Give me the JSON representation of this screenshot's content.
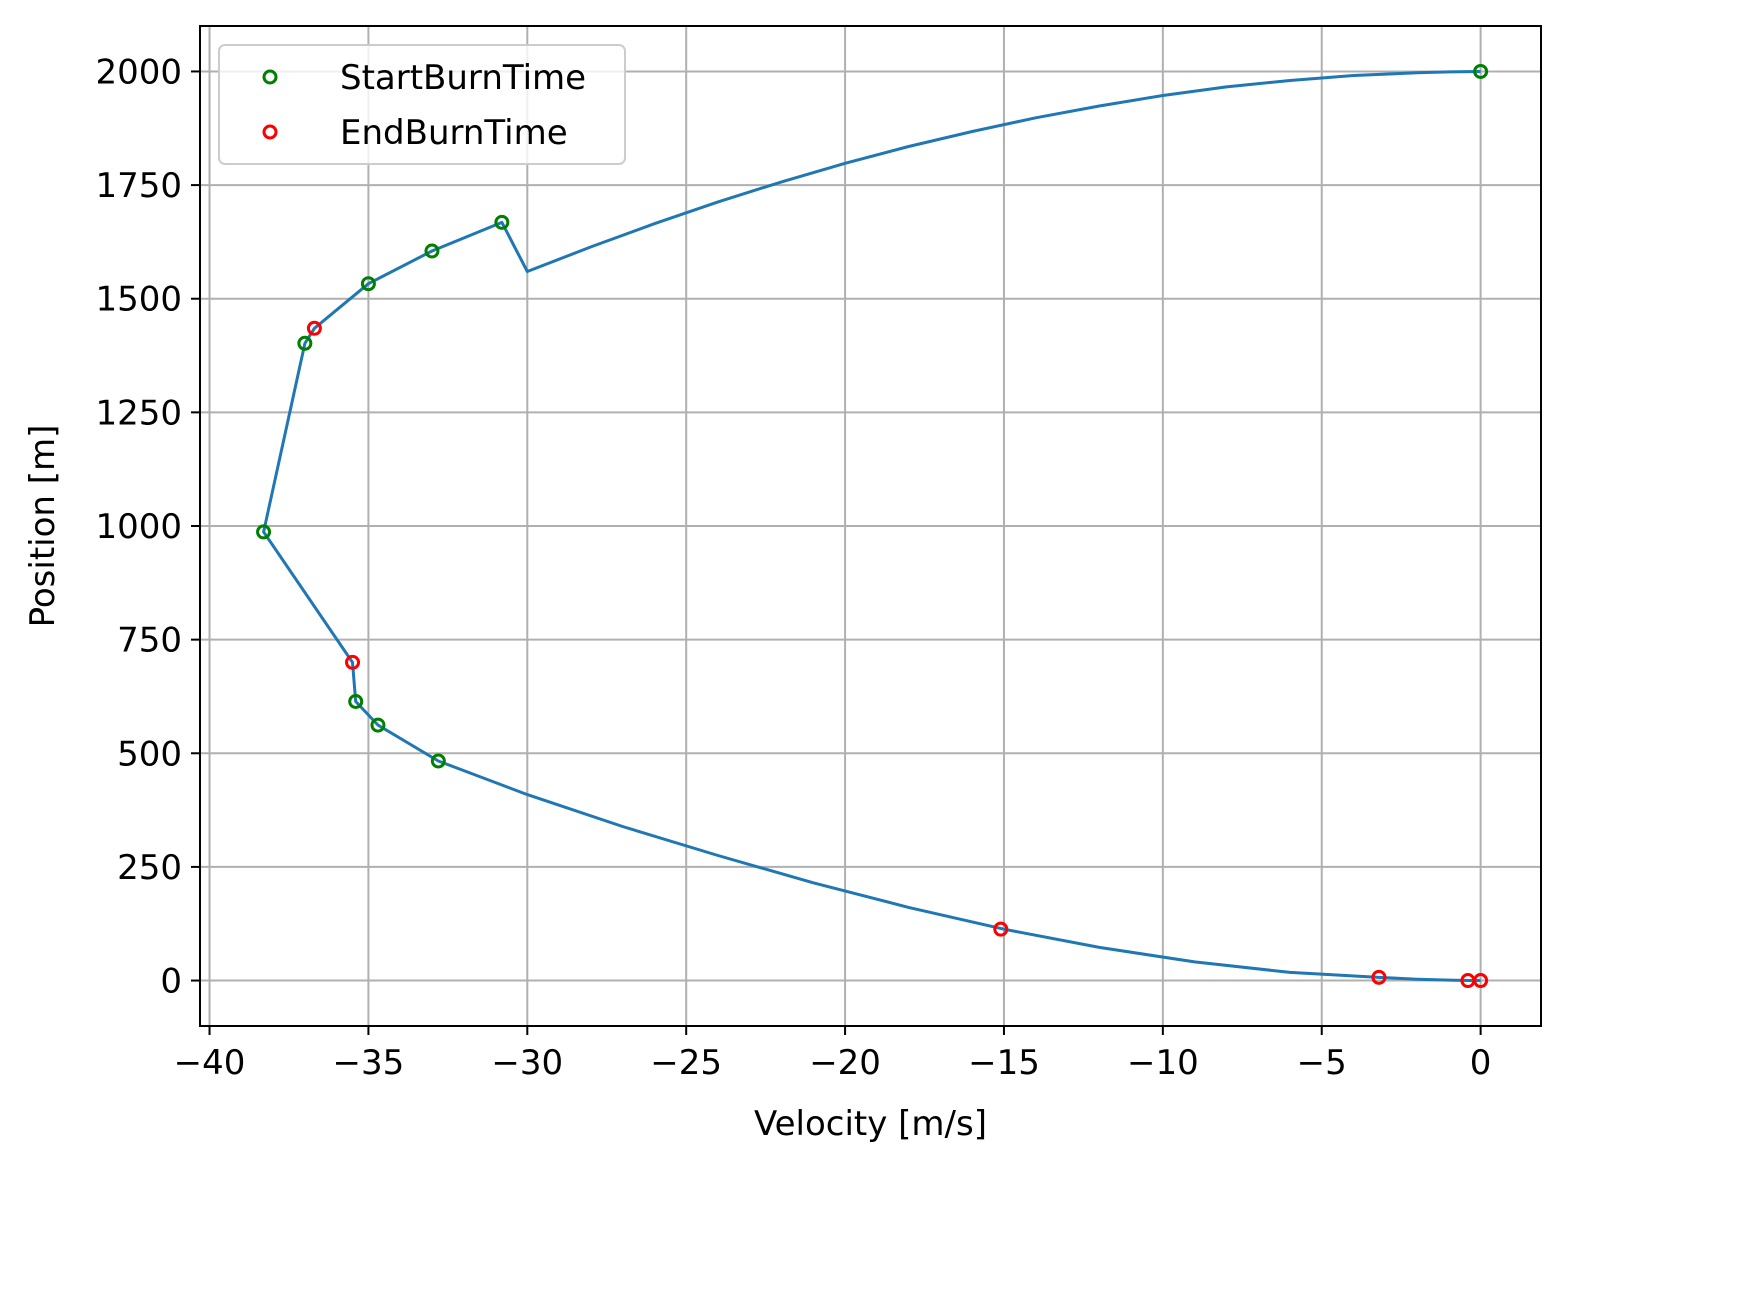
{
  "chart_data": {
    "type": "scatter",
    "title": "",
    "xlabel": "Velocity [m/s]",
    "ylabel": "Position [m]",
    "xlim": [
      -40.3,
      1.9
    ],
    "ylim": [
      -100,
      2100
    ],
    "xticks": [
      -40,
      -35,
      -30,
      -25,
      -20,
      -15,
      -10,
      -5,
      0
    ],
    "xtick_labels": [
      "−40",
      "−35",
      "−30",
      "−25",
      "−20",
      "−15",
      "−10",
      "−5",
      "0"
    ],
    "yticks": [
      0,
      250,
      500,
      750,
      1000,
      1250,
      1500,
      1750,
      2000
    ],
    "ytick_labels": [
      "0",
      "250",
      "500",
      "750",
      "1000",
      "1250",
      "1500",
      "1750",
      "2000"
    ],
    "grid": true,
    "legend_position": "top-left",
    "trajectory": {
      "color": "#1f77b4",
      "points": [
        [
          0.0,
          2000
        ],
        [
          -1.0,
          1999
        ],
        [
          -2.0,
          1997
        ],
        [
          -4.0,
          1991
        ],
        [
          -6.0,
          1980
        ],
        [
          -8.0,
          1966
        ],
        [
          -10.0,
          1947
        ],
        [
          -12.0,
          1924
        ],
        [
          -14.0,
          1898
        ],
        [
          -16.0,
          1868
        ],
        [
          -18.0,
          1835
        ],
        [
          -20.0,
          1798
        ],
        [
          -22.0,
          1757
        ],
        [
          -24.0,
          1713
        ],
        [
          -26.0,
          1665
        ],
        [
          -28.0,
          1614
        ],
        [
          -30.0,
          1560
        ],
        [
          -30.8,
          1668
        ],
        [
          -33.0,
          1605
        ],
        [
          -35.0,
          1533
        ],
        [
          -36.7,
          1435
        ],
        [
          -37.0,
          1402
        ],
        [
          -38.3,
          987
        ],
        [
          -35.5,
          700
        ],
        [
          -35.4,
          614
        ],
        [
          -34.7,
          562
        ],
        [
          -32.8,
          483
        ],
        [
          -30.0,
          409
        ],
        [
          -27.0,
          339
        ],
        [
          -24.0,
          275
        ],
        [
          -21.0,
          215
        ],
        [
          -18.0,
          161
        ],
        [
          -15.0,
          113
        ],
        [
          -12.0,
          73
        ],
        [
          -9.0,
          41
        ],
        [
          -6.0,
          18
        ],
        [
          -3.2,
          7
        ],
        [
          -2.0,
          3
        ],
        [
          -1.0,
          1
        ],
        [
          -0.4,
          0
        ],
        [
          0.0,
          0
        ]
      ]
    },
    "series": [
      {
        "name": "StartBurnTime",
        "color": "#008000",
        "points": [
          [
            0.0,
            2000
          ],
          [
            -30.8,
            1668
          ],
          [
            -33.0,
            1605
          ],
          [
            -35.0,
            1533
          ],
          [
            -37.0,
            1402
          ],
          [
            -38.3,
            987
          ],
          [
            -35.4,
            614
          ],
          [
            -34.7,
            562
          ],
          [
            -32.8,
            483
          ]
        ]
      },
      {
        "name": "EndBurnTime",
        "color": "#ff0000",
        "points": [
          [
            -36.7,
            1435
          ],
          [
            -35.5,
            700
          ],
          [
            -15.1,
            113
          ],
          [
            -3.2,
            7
          ],
          [
            -0.4,
            0
          ],
          [
            0.0,
            0
          ]
        ]
      }
    ]
  }
}
